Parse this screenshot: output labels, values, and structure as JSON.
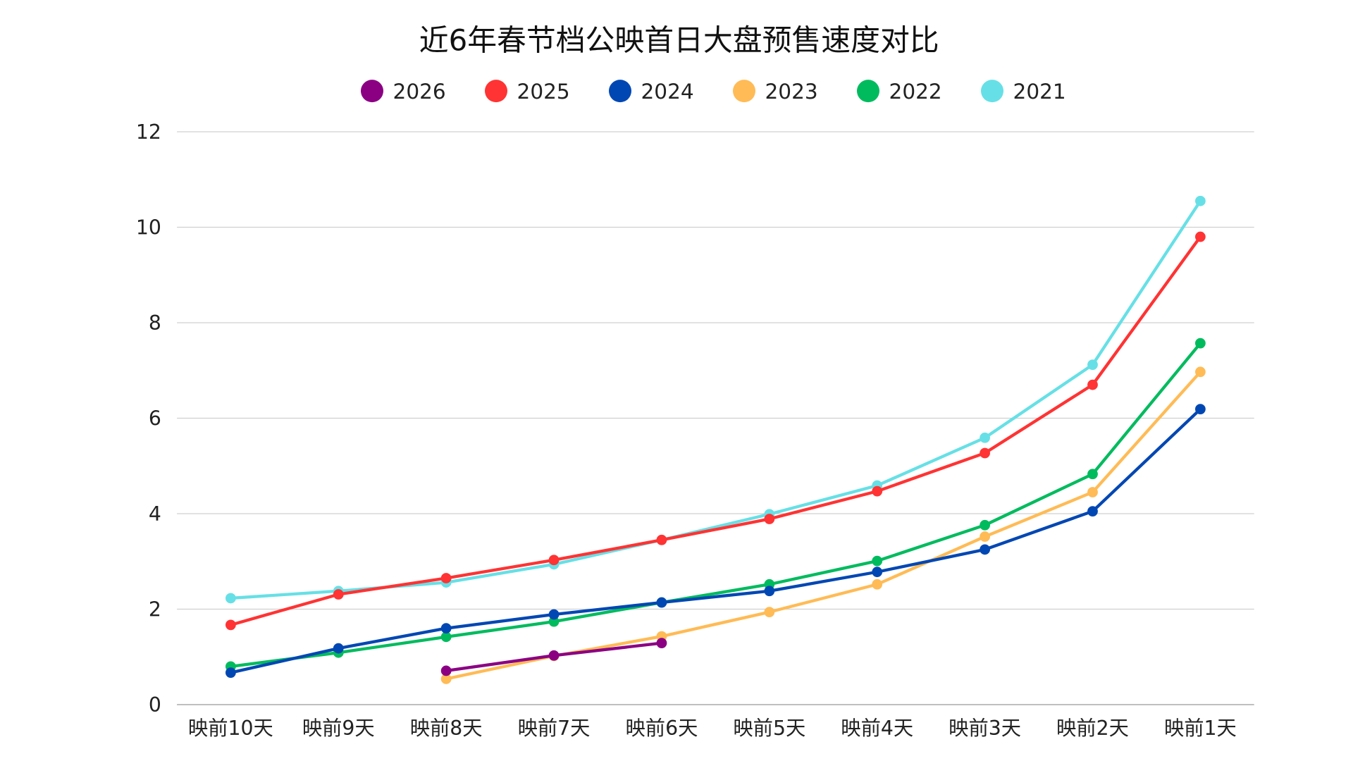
{
  "chart_data": {
    "type": "line",
    "title": "近6年春节档公映首日大盘预售速度对比",
    "xlabel": "",
    "ylabel": "",
    "ylim": [
      0,
      12
    ],
    "yticks": [
      "0",
      "2",
      "4",
      "6",
      "8",
      "10",
      "12"
    ],
    "grid": true,
    "legend_position": "top",
    "categories": [
      "映前10天",
      "映前9天",
      "映前8天",
      "映前7天",
      "映前6天",
      "映前5天",
      "映前4天",
      "映前3天",
      "映前2天",
      "映前1天"
    ],
    "series": [
      {
        "name": "2026",
        "color": "#8B0083",
        "values": [
          null,
          null,
          0.71,
          1.03,
          1.29,
          null,
          null,
          null,
          null,
          null
        ]
      },
      {
        "name": "2025",
        "color": "#FF3333",
        "values": [
          1.67,
          2.31,
          2.65,
          3.03,
          3.45,
          3.89,
          4.47,
          5.27,
          6.7,
          9.8
        ]
      },
      {
        "name": "2024",
        "color": "#0047B3",
        "values": [
          0.67,
          1.18,
          1.6,
          1.89,
          2.14,
          2.38,
          2.78,
          3.25,
          4.05,
          6.19
        ]
      },
      {
        "name": "2023",
        "color": "#FFBB55",
        "values": [
          null,
          null,
          0.54,
          1.02,
          1.43,
          1.94,
          2.52,
          3.52,
          4.45,
          6.97
        ]
      },
      {
        "name": "2022",
        "color": "#00BB5E",
        "values": [
          0.8,
          1.09,
          1.42,
          1.74,
          2.14,
          2.52,
          3.01,
          3.76,
          4.83,
          7.57
        ]
      },
      {
        "name": "2021",
        "color": "#66E0E6",
        "values": [
          2.23,
          2.38,
          2.56,
          2.94,
          3.45,
          3.99,
          4.59,
          5.59,
          7.12,
          10.55
        ]
      }
    ]
  }
}
